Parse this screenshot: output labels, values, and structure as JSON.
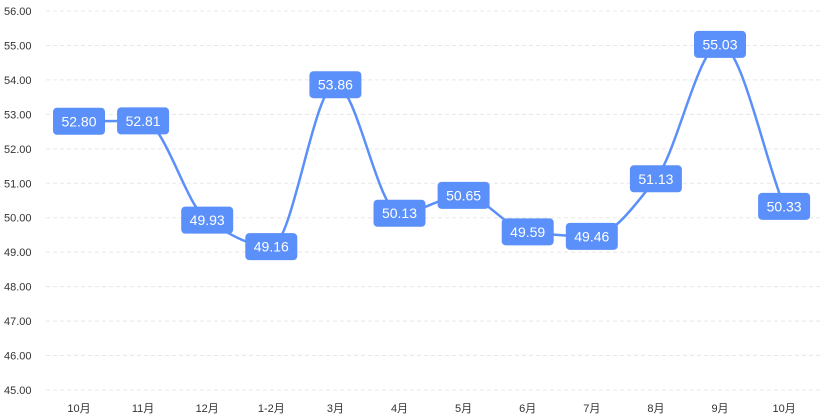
{
  "chart_data": {
    "type": "line",
    "categories": [
      "10月",
      "11月",
      "12月",
      "1-2月",
      "3月",
      "4月",
      "5月",
      "6月",
      "7月",
      "8月",
      "9月",
      "10月"
    ],
    "series": [
      {
        "values": [
          52.8,
          52.81,
          49.93,
          49.16,
          53.86,
          50.13,
          50.65,
          49.59,
          49.46,
          51.13,
          55.03,
          50.33
        ],
        "value_labels": [
          "52.80",
          "52.81",
          "49.93",
          "49.16",
          "53.86",
          "50.13",
          "50.65",
          "49.59",
          "49.46",
          "51.13",
          "55.03",
          "50.33"
        ]
      }
    ],
    "ylim": [
      45,
      56
    ],
    "yticks": [
      "45.00",
      "46.00",
      "47.00",
      "48.00",
      "49.00",
      "50.00",
      "51.00",
      "52.00",
      "53.00",
      "54.00",
      "55.00",
      "56.00"
    ],
    "grid": true,
    "colors": {
      "line": "#5b8ff9",
      "label_bg": "#5b8ff9",
      "label_text": "#ffffff",
      "grid": "#e8e8e8",
      "tick_text": "#333333"
    }
  }
}
